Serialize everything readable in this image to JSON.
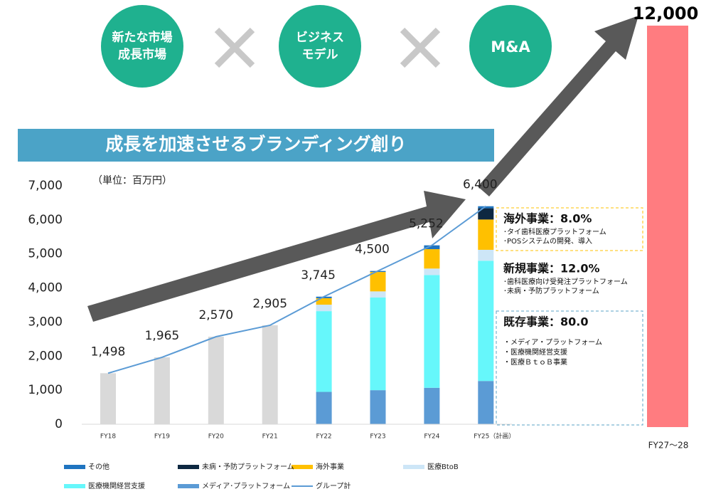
{
  "header": {
    "circles": [
      [
        "新たな市場",
        "成長市場"
      ],
      [
        "ビジネス",
        "モデル"
      ],
      [
        "M&A"
      ]
    ],
    "banner": "成長を加速させるブランディング創り"
  },
  "chart_data": {
    "type": "bar",
    "stacked": true,
    "unit": "（単位：百万円）",
    "categories": [
      "FY18",
      "FY19",
      "FY20",
      "FY21",
      "FY22",
      "FY23",
      "FY24",
      "FY25（計画）"
    ],
    "series": [
      {
        "name": "メディア･プラットフォーム",
        "color": "#5b9bd5",
        "values": [
          null,
          null,
          null,
          null,
          950,
          1000,
          1070,
          1270
        ]
      },
      {
        "name": "医療機関経営支援",
        "color": "#66f7fb",
        "values": [
          null,
          null,
          null,
          null,
          2370,
          2720,
          3310,
          3530
        ]
      },
      {
        "name": "医療BtoB",
        "color": "#cde6f7",
        "values": [
          null,
          null,
          null,
          null,
          190,
          180,
          190,
          320
        ]
      },
      {
        "name": "海外事業",
        "color": "#ffc000",
        "values": [
          null,
          null,
          null,
          null,
          190,
          570,
          570,
          890
        ]
      },
      {
        "name": "未病・予防プラットフォーム",
        "color": "#0e2841",
        "values": [
          null,
          null,
          null,
          null,
          0,
          0,
          0,
          330
        ]
      },
      {
        "name": "その他",
        "color": "#1f74c0",
        "values": [
          null,
          null,
          null,
          null,
          45,
          30,
          112,
          60
        ]
      },
      {
        "name": "グループ計",
        "type": "line",
        "color": "#5b9bd5",
        "values": [
          1498,
          1965,
          2570,
          2905,
          3745,
          4500,
          5252,
          6400
        ],
        "value_labels": [
          "1,498",
          "1,965",
          "2,570",
          "2,905",
          "3,745",
          "4,500",
          "5,252",
          "6,400"
        ]
      }
    ],
    "total_bar_color": "#d9d9d9",
    "ylim": [
      0,
      7000
    ],
    "yticks": [
      0,
      {
        "value": 1000,
        "label": "1,000"
      },
      {
        "value": 2000,
        "label": "2,000"
      },
      {
        "value": 3000,
        "label": "3,000"
      },
      {
        "value": 4000,
        "label": "4,000"
      },
      {
        "value": 5000,
        "label": "5,000"
      },
      {
        "value": 6000,
        "label": "6,000"
      },
      {
        "value": 7000,
        "label": "7,000"
      }
    ],
    "target": {
      "category": "FY27〜28",
      "value": 12000,
      "value_label": "12,000",
      "color": "#ff7c80"
    }
  },
  "boxes": [
    {
      "title": "海外事業：8.0%",
      "items": [
        "･タイ歯科医療プラットフォーム",
        "･POSシステムの開発、導入"
      ]
    },
    {
      "title": "新規事業：12.0%",
      "items": [
        "･歯科医療向け受発注プラットフォーム",
        "･未病・予防プラットフォーム"
      ]
    },
    {
      "title": "既存事業：80.0",
      "items": [
        "・メディア・プラットフォーム",
        "・医療機関経営支援",
        "・医療ＢｔｏＢ事業"
      ]
    }
  ]
}
